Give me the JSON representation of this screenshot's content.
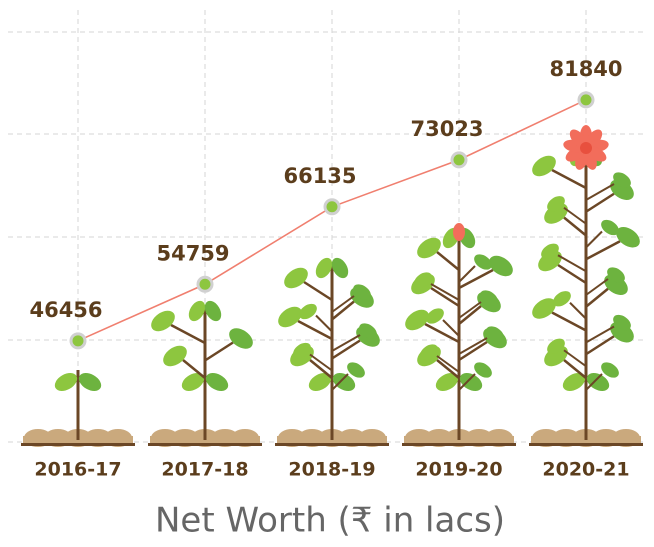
{
  "chart_data": {
    "type": "line",
    "title": "Net Worth (₹ in lacs)",
    "categories": [
      "2016-17",
      "2017-18",
      "2018-19",
      "2019-20",
      "2020-21"
    ],
    "values": [
      46456,
      54759,
      66135,
      73023,
      81840
    ],
    "color": "#f07f6f",
    "ylim": [
      31600,
      91800
    ],
    "grid": true
  }
}
